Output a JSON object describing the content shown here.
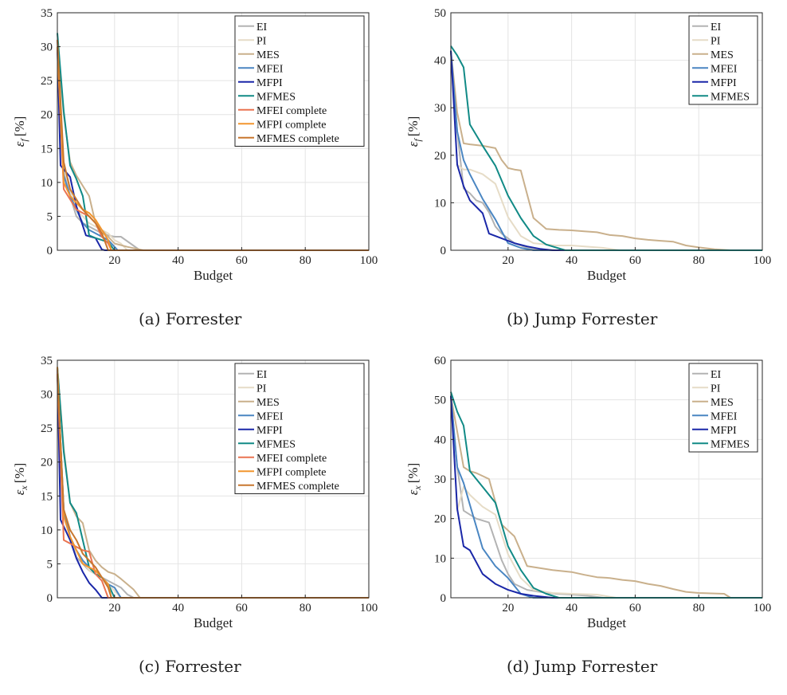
{
  "colors": {
    "EI": "#b3b3b3",
    "PI": "#e6dcc7",
    "MES": "#c9b08c",
    "MFEI": "#4a86c2",
    "MFPI": "#1a27a8",
    "MFMES": "#118a86",
    "MFEI complete": "#ea7350",
    "MFPI complete": "#f2952e",
    "MFMES complete": "#c8772e"
  },
  "chart_data": [
    {
      "id": "a",
      "type": "line",
      "caption": "(a)  Forrester",
      "xlabel": "Budget",
      "ylabel_main": "ε",
      "ylabel_sub": "f",
      "ylabel_unit": "[%]",
      "xlim": [
        2,
        100
      ],
      "ylim": [
        0,
        35
      ],
      "xticks": [
        20,
        40,
        60,
        80,
        100
      ],
      "yticks": [
        0,
        5,
        10,
        15,
        20,
        25,
        30,
        35
      ],
      "grid": true,
      "legend_position": "top-right",
      "series": [
        {
          "name": "EI",
          "x": [
            2,
            4,
            6,
            8,
            10,
            12,
            14,
            16,
            18,
            20,
            22,
            25,
            28,
            100
          ],
          "y": [
            30,
            12,
            8,
            5,
            4,
            3.5,
            3,
            2.5,
            2.2,
            2,
            2,
            1,
            0,
            0
          ]
        },
        {
          "name": "PI",
          "x": [
            2,
            4,
            6,
            8,
            10,
            12,
            14,
            16,
            18,
            20,
            22,
            24,
            100
          ],
          "y": [
            29,
            12,
            9,
            6,
            5,
            4,
            3.5,
            3,
            2.5,
            1.5,
            1,
            0,
            0
          ]
        },
        {
          "name": "MES",
          "x": [
            2,
            4,
            6,
            8,
            10,
            12,
            14,
            16,
            18,
            20,
            24,
            29,
            100
          ],
          "y": [
            31,
            20,
            13,
            11,
            9.5,
            8,
            4,
            3,
            2,
            1,
            0.5,
            0,
            0
          ]
        },
        {
          "name": "MFEI",
          "x": [
            2,
            4,
            6,
            8,
            10,
            12,
            14,
            16,
            18,
            20,
            21,
            100
          ],
          "y": [
            30,
            11,
            8,
            6,
            4,
            3,
            2.5,
            2,
            1.5,
            0.5,
            0,
            0
          ]
        },
        {
          "name": "MFPI",
          "x": [
            2,
            3,
            6,
            8,
            11,
            14,
            16,
            17,
            100
          ],
          "y": [
            30,
            12.5,
            10.8,
            6.5,
            2.2,
            1.8,
            0.1,
            0,
            0
          ]
        },
        {
          "name": "MFMES",
          "x": [
            2,
            4,
            6,
            8,
            10,
            12,
            14,
            16,
            18,
            20,
            100
          ],
          "y": [
            32,
            20.5,
            12.5,
            10.5,
            8,
            2.2,
            1.8,
            1.5,
            1.2,
            0,
            0
          ]
        },
        {
          "name": "MFEI complete",
          "x": [
            2,
            4,
            6,
            8,
            10,
            12,
            14,
            16,
            18,
            19,
            100
          ],
          "y": [
            30,
            9,
            7.5,
            6,
            5.5,
            5,
            4,
            2,
            1,
            0,
            0
          ]
        },
        {
          "name": "MFPI complete",
          "x": [
            2,
            4,
            6,
            8,
            10,
            12,
            14,
            16,
            18,
            19,
            100
          ],
          "y": [
            30,
            10,
            8,
            7,
            6,
            5.5,
            4.5,
            3,
            1.5,
            0,
            0
          ]
        },
        {
          "name": "MFMES complete",
          "x": [
            2,
            4,
            6,
            8,
            10,
            12,
            14,
            16,
            18,
            100
          ],
          "y": [
            31,
            13,
            9,
            7.5,
            6,
            5,
            4,
            2.5,
            0,
            0
          ]
        }
      ]
    },
    {
      "id": "b",
      "type": "line",
      "caption": "(b)  Jump Forrester",
      "xlabel": "Budget",
      "ylabel_main": "ε",
      "ylabel_sub": "f",
      "ylabel_unit": "[%]",
      "xlim": [
        2,
        100
      ],
      "ylim": [
        0,
        50
      ],
      "xticks": [
        20,
        40,
        60,
        80,
        100
      ],
      "yticks": [
        0,
        10,
        20,
        30,
        40,
        50
      ],
      "grid": true,
      "legend_position": "top-right",
      "series": [
        {
          "name": "EI",
          "x": [
            2,
            4,
            6,
            8,
            10,
            12,
            14,
            16,
            18,
            20,
            22,
            24,
            26,
            30,
            35,
            40,
            100
          ],
          "y": [
            42,
            25,
            13,
            12,
            10.5,
            10,
            8,
            5,
            3.5,
            2.5,
            1.5,
            1,
            0.5,
            0.2,
            0,
            0,
            0
          ]
        },
        {
          "name": "PI",
          "x": [
            2,
            4,
            6,
            8,
            12,
            16,
            20,
            24,
            28,
            35,
            40,
            50,
            55,
            100
          ],
          "y": [
            42,
            18,
            17,
            17,
            16,
            14,
            7,
            3,
            1.5,
            1,
            1,
            0.5,
            0,
            0
          ]
        },
        {
          "name": "MES",
          "x": [
            2,
            4,
            6,
            8,
            12,
            16,
            18,
            20,
            22,
            24,
            28,
            32,
            36,
            40,
            44,
            48,
            52,
            56,
            60,
            64,
            68,
            72,
            76,
            80,
            85,
            90,
            100
          ],
          "y": [
            42,
            29,
            22.5,
            22.3,
            22,
            21.5,
            19,
            17.3,
            17,
            16.8,
            6.8,
            4.5,
            4.3,
            4.2,
            4,
            3.8,
            3.2,
            3,
            2.5,
            2.2,
            2,
            1.8,
            1,
            0.6,
            0.2,
            0,
            0
          ]
        },
        {
          "name": "MFEI",
          "x": [
            2,
            4,
            6,
            8,
            12,
            16,
            20,
            22,
            24,
            28,
            100
          ],
          "y": [
            42,
            25,
            19,
            16,
            10.8,
            6.5,
            1.5,
            1,
            0.5,
            0,
            0
          ]
        },
        {
          "name": "MFPI",
          "x": [
            2,
            4,
            6,
            8,
            12,
            14,
            18,
            22,
            26,
            30,
            34,
            100
          ],
          "y": [
            42,
            18,
            13.5,
            10.5,
            7.8,
            3.5,
            2.5,
            1.5,
            0.8,
            0.3,
            0,
            0
          ]
        },
        {
          "name": "MFMES",
          "x": [
            2,
            4,
            6,
            8,
            12,
            16,
            20,
            24,
            28,
            32,
            38,
            100
          ],
          "y": [
            43,
            41,
            38.5,
            26.5,
            22,
            17.8,
            11.5,
            6.8,
            3,
            1.2,
            0,
            0
          ]
        }
      ]
    },
    {
      "id": "c",
      "type": "line",
      "caption": "(c)  Forrester",
      "xlabel": "Budget",
      "ylabel_main": "ε",
      "ylabel_sub": "x",
      "ylabel_unit": "[%]",
      "xlim": [
        2,
        100
      ],
      "ylim": [
        0,
        35
      ],
      "xticks": [
        20,
        40,
        60,
        80,
        100
      ],
      "yticks": [
        0,
        5,
        10,
        15,
        20,
        25,
        30,
        35
      ],
      "grid": true,
      "legend_position": "top-right",
      "series": [
        {
          "name": "EI",
          "x": [
            2,
            4,
            6,
            8,
            10,
            12,
            14,
            16,
            18,
            20,
            22,
            24,
            26,
            100
          ],
          "y": [
            33,
            13,
            9,
            6,
            5,
            4,
            3.5,
            3,
            2.5,
            2,
            1.5,
            0.5,
            0,
            0
          ]
        },
        {
          "name": "PI",
          "x": [
            2,
            4,
            6,
            8,
            10,
            12,
            14,
            16,
            18,
            20,
            22,
            100
          ],
          "y": [
            32,
            12,
            9,
            7,
            5.5,
            4,
            3.5,
            3,
            2,
            1,
            0,
            0
          ]
        },
        {
          "name": "MES",
          "x": [
            2,
            4,
            6,
            8,
            10,
            12,
            14,
            16,
            18,
            20,
            22,
            26,
            28,
            100
          ],
          "y": [
            34,
            22,
            14,
            12,
            11,
            7,
            5.5,
            4.5,
            3.8,
            3.5,
            2.8,
            1.2,
            0,
            0
          ]
        },
        {
          "name": "MFEI",
          "x": [
            2,
            4,
            6,
            8,
            10,
            12,
            14,
            16,
            18,
            20,
            22,
            100
          ],
          "y": [
            33,
            13,
            9,
            7,
            5.5,
            4.5,
            3.5,
            3,
            2,
            1.5,
            0,
            0
          ]
        },
        {
          "name": "MFPI",
          "x": [
            2,
            3,
            6,
            8,
            10,
            12,
            14,
            16,
            18,
            100
          ],
          "y": [
            34,
            11.5,
            8.5,
            5.8,
            3.8,
            2.2,
            1.2,
            0,
            0,
            0
          ]
        },
        {
          "name": "MFMES",
          "x": [
            2,
            4,
            6,
            8,
            10,
            12,
            14,
            16,
            18,
            20,
            100
          ],
          "y": [
            34,
            21.5,
            14,
            12.5,
            8.5,
            4.5,
            3.5,
            3,
            2,
            0,
            0
          ]
        },
        {
          "name": "MFEI complete",
          "x": [
            2,
            4,
            6,
            8,
            10,
            12,
            14,
            16,
            18,
            100
          ],
          "y": [
            33,
            8.5,
            8,
            7.5,
            7,
            6.8,
            3.5,
            2.5,
            0,
            0
          ]
        },
        {
          "name": "MFPI complete",
          "x": [
            2,
            4,
            6,
            8,
            10,
            12,
            14,
            16,
            18,
            19,
            100
          ],
          "y": [
            34,
            12,
            9,
            7,
            5,
            4.5,
            4,
            3,
            2,
            0,
            0
          ]
        },
        {
          "name": "MFMES complete",
          "x": [
            2,
            4,
            6,
            8,
            10,
            12,
            14,
            16,
            18,
            19,
            100
          ],
          "y": [
            33,
            13,
            10,
            8.5,
            6.5,
            5.5,
            4.5,
            3,
            1.5,
            0,
            0
          ]
        }
      ]
    },
    {
      "id": "d",
      "type": "line",
      "caption": "(d)  Jump Forrester",
      "xlabel": "Budget",
      "ylabel_main": "ε",
      "ylabel_sub": "x",
      "ylabel_unit": "[%]",
      "xlim": [
        2,
        100
      ],
      "ylim": [
        0,
        60
      ],
      "xticks": [
        20,
        40,
        60,
        80,
        100
      ],
      "yticks": [
        0,
        10,
        20,
        30,
        40,
        50,
        60
      ],
      "grid": true,
      "legend_position": "top-right",
      "series": [
        {
          "name": "EI",
          "x": [
            2,
            4,
            6,
            8,
            10,
            14,
            18,
            20,
            22,
            26,
            30,
            35,
            40,
            45,
            50,
            100
          ],
          "y": [
            51,
            33,
            22,
            21,
            20,
            19,
            9.5,
            6,
            3.5,
            2,
            1.5,
            1,
            0.8,
            0.5,
            0,
            0
          ]
        },
        {
          "name": "PI",
          "x": [
            2,
            4,
            6,
            8,
            12,
            16,
            20,
            24,
            28,
            34,
            40,
            48,
            54,
            100
          ],
          "y": [
            51,
            22,
            28,
            26,
            23,
            21,
            11,
            5,
            2,
            1.2,
            1,
            0.8,
            0,
            0
          ]
        },
        {
          "name": "MES",
          "x": [
            2,
            4,
            6,
            8,
            10,
            14,
            18,
            22,
            26,
            30,
            34,
            40,
            44,
            48,
            52,
            56,
            60,
            64,
            68,
            72,
            76,
            80,
            88,
            90,
            100
          ],
          "y": [
            51,
            42,
            33,
            32,
            31.5,
            30,
            18.5,
            15.5,
            8,
            7.5,
            7,
            6.5,
            5.8,
            5.2,
            5,
            4.5,
            4.2,
            3.5,
            3,
            2.2,
            1.5,
            1.2,
            1,
            0,
            0
          ]
        },
        {
          "name": "MFEI",
          "x": [
            2,
            4,
            6,
            8,
            12,
            16,
            20,
            24,
            28,
            100
          ],
          "y": [
            51,
            33,
            29,
            23.5,
            12.5,
            8,
            5,
            1,
            0,
            0
          ]
        },
        {
          "name": "MFPI",
          "x": [
            2,
            4,
            6,
            8,
            12,
            16,
            20,
            24,
            28,
            34,
            100
          ],
          "y": [
            51,
            22.5,
            13,
            12,
            6,
            3.5,
            2,
            1,
            0.5,
            0,
            0
          ]
        },
        {
          "name": "MFMES",
          "x": [
            2,
            4,
            6,
            8,
            12,
            16,
            20,
            24,
            28,
            32,
            36,
            100
          ],
          "y": [
            52,
            47,
            43.5,
            32,
            28,
            24,
            13,
            7,
            2.5,
            1,
            0,
            0
          ]
        }
      ]
    }
  ]
}
